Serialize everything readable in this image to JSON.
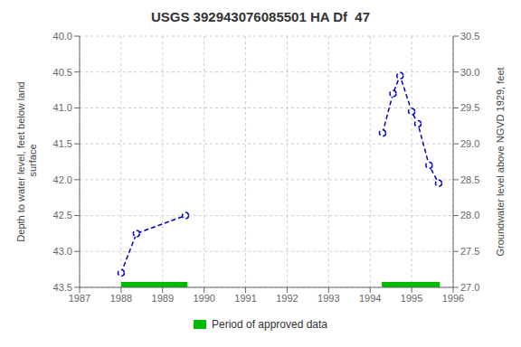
{
  "chart_data": {
    "type": "line",
    "title": "USGS 392943076085501 HA Df  47",
    "y_label": "Depth to water level, feet below land\n surface",
    "y2_label": "Groundwater level above NGVD 1929, feet",
    "xlim": [
      1987,
      1996
    ],
    "xticks": [
      1987,
      1988,
      1989,
      1990,
      1991,
      1992,
      1993,
      1994,
      1995,
      1996
    ],
    "ylim": [
      43.5,
      40.0
    ],
    "yticks": [
      {
        "value": 40.0,
        "label": "40.0"
      },
      {
        "value": 40.5,
        "label": "40.5"
      },
      {
        "value": 41.0,
        "label": "41.0"
      },
      {
        "value": 41.5,
        "label": "41.5"
      },
      {
        "value": 42.0,
        "label": "42.0"
      },
      {
        "value": 42.5,
        "label": "42.5"
      },
      {
        "value": 43.0,
        "label": "43.0"
      },
      {
        "value": 43.5,
        "label": "43.5"
      }
    ],
    "y2lim": [
      27.0,
      30.5
    ],
    "y2ticks": [
      {
        "value": 27.0,
        "label": "27.0"
      },
      {
        "value": 27.5,
        "label": "27.5"
      },
      {
        "value": 28.0,
        "label": "28.0"
      },
      {
        "value": 28.5,
        "label": "28.5"
      },
      {
        "value": 29.0,
        "label": "29.0"
      },
      {
        "value": 29.5,
        "label": "29.5"
      },
      {
        "value": 30.0,
        "label": "30.0"
      },
      {
        "value": 30.5,
        "label": "30.5"
      }
    ],
    "grid": true,
    "legend": "bottom",
    "series": [
      {
        "x": [
          1988.0,
          1988.37,
          1989.55
        ],
        "values": [
          43.3,
          42.75,
          42.5
        ],
        "color": "#0000cc",
        "marker": "circle",
        "line_style": "dashed"
      },
      {
        "x": [
          1994.3,
          1994.55,
          1994.72,
          1995.0,
          1995.15,
          1995.42,
          1995.65
        ],
        "values": [
          41.35,
          40.8,
          40.55,
          41.05,
          41.22,
          41.8,
          42.05
        ],
        "color": "#0000cc",
        "marker": "circle",
        "line_style": "dashed"
      }
    ],
    "approved_periods": {
      "name": "Period of approved data",
      "color": "#00bb00",
      "ranges": [
        {
          "x_start": 1988.0,
          "x_end": 1989.6
        },
        {
          "x_start": 1994.28,
          "x_end": 1995.68
        }
      ]
    }
  }
}
